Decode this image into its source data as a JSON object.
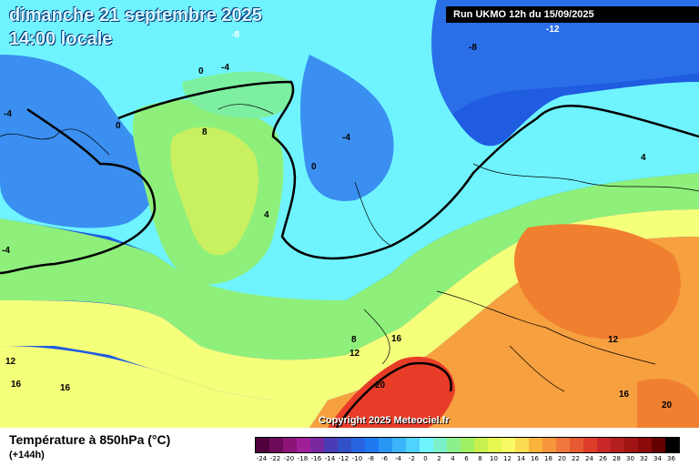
{
  "header": {
    "date_line": "dimanche 21 septembre 2025",
    "time_line": "14:00 locale",
    "run_info": "Run UKMO 12h du 15/09/2025"
  },
  "footer": {
    "parameter": "Température à 850hPa (°C)",
    "lead_time": "(+144h)",
    "copyright": "Copyright 2025 Meteociel.fr"
  },
  "contour_labels": [
    "-8",
    "-8",
    "-12",
    "-8",
    "0",
    "-4",
    "-4",
    "0",
    "8",
    "-4",
    "0",
    "4",
    "-4",
    "4",
    "8",
    "12",
    "16",
    "12",
    "16",
    "16",
    "20",
    "12",
    "16",
    "20"
  ],
  "colors": {
    "deep_blue": "#1f5ce0",
    "blue": "#3a8ff0",
    "cyan": "#6ff4ff",
    "green_pale": "#7cf0a0",
    "green": "#8ef07a",
    "yellow_green": "#c8f060",
    "yellow": "#f4ff7a",
    "orange": "#f7a040",
    "red": "#e83c28"
  },
  "scale": {
    "labels": [
      "-24",
      "-22",
      "-20",
      "-18",
      "-16",
      "-14",
      "-12",
      "-10",
      "-8",
      "-6",
      "-4",
      "-2",
      "0",
      "2",
      "4",
      "6",
      "8",
      "10",
      "12",
      "14",
      "16",
      "18",
      "20",
      "22",
      "24",
      "26",
      "28",
      "30",
      "32",
      "34",
      "36"
    ],
    "colors": [
      "#50003c",
      "#6e0a5a",
      "#8c1478",
      "#a01e96",
      "#7a28a0",
      "#4a3cb4",
      "#3250c8",
      "#2864e0",
      "#1e78f0",
      "#2896f5",
      "#3cb4fa",
      "#50d2ff",
      "#6ff4ff",
      "#7cf0c8",
      "#8cf08c",
      "#a0f064",
      "#c8f050",
      "#e6f850",
      "#fafa64",
      "#fadc50",
      "#fab43c",
      "#f7963c",
      "#f0783c",
      "#e65a32",
      "#dc3c28",
      "#c82828",
      "#b41e1e",
      "#a01414",
      "#8c0a0a",
      "#640000",
      "#000000"
    ]
  }
}
